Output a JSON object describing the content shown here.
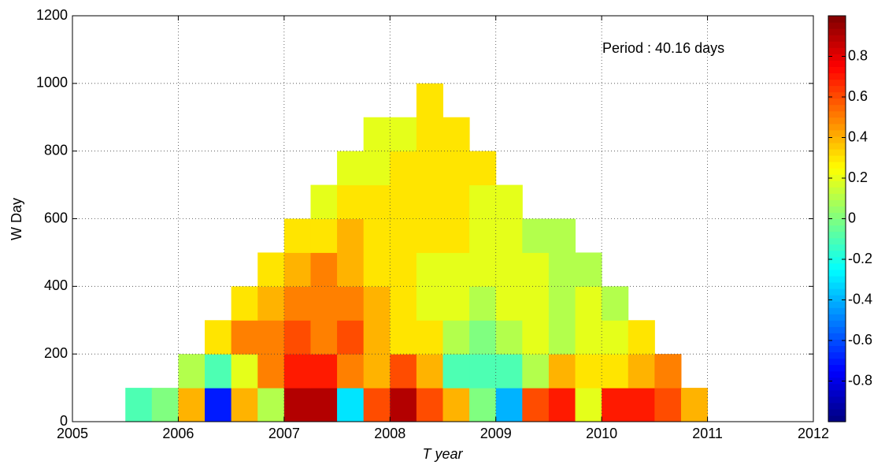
{
  "chart_data": {
    "type": "heatmap",
    "annotation": "Period : 40.16 days",
    "xlabel": "T year",
    "ylabel": "W Day",
    "xlim": [
      2005,
      2012
    ],
    "xticks": [
      2005,
      2006,
      2007,
      2008,
      2009,
      2010,
      2011,
      2012
    ],
    "ylim": [
      0,
      1200
    ],
    "yticks": [
      0,
      200,
      400,
      600,
      800,
      1000,
      1200
    ],
    "grid": true,
    "colormap": "jet",
    "clim": [
      -1,
      1
    ],
    "cticks": [
      -0.8,
      -0.6,
      -0.4,
      -0.2,
      0,
      0.2,
      0.4,
      0.6,
      0.8
    ],
    "x_edges": [
      2005.5,
      2005.75,
      2006,
      2006.25,
      2006.5,
      2006.75,
      2007,
      2007.25,
      2007.5,
      2007.75,
      2008,
      2008.25,
      2008.5,
      2008.75,
      2009,
      2009.25,
      2009.5,
      2009.75,
      2010,
      2010.25,
      2010.5,
      2010.75,
      2011
    ],
    "y_edges": [
      0,
      100,
      200,
      300,
      400,
      500,
      600,
      700,
      800,
      900,
      1000
    ],
    "z": [
      [
        -0.1,
        0.0,
        0.4,
        -0.7,
        0.4,
        0.1,
        0.9,
        0.9,
        -0.3,
        0.6,
        0.9,
        0.6,
        0.4,
        0.0,
        -0.4,
        0.6,
        0.7,
        0.2,
        0.7,
        0.7,
        0.6,
        0.4
      ],
      [
        null,
        null,
        0.1,
        -0.1,
        0.2,
        0.5,
        0.7,
        0.7,
        0.5,
        0.4,
        0.6,
        0.4,
        -0.1,
        -0.1,
        -0.1,
        0.1,
        0.4,
        0.3,
        0.3,
        0.4,
        0.5,
        null
      ],
      [
        null,
        null,
        null,
        0.3,
        0.5,
        0.5,
        0.6,
        0.5,
        0.6,
        0.4,
        0.3,
        0.3,
        0.1,
        0.0,
        0.1,
        0.2,
        0.1,
        0.2,
        0.2,
        0.3,
        null,
        null
      ],
      [
        null,
        null,
        null,
        null,
        0.3,
        0.4,
        0.5,
        0.5,
        0.5,
        0.4,
        0.3,
        0.2,
        0.2,
        0.1,
        0.2,
        0.2,
        0.1,
        0.2,
        0.1,
        null,
        null,
        null
      ],
      [
        null,
        null,
        null,
        null,
        null,
        0.3,
        0.4,
        0.5,
        0.4,
        0.3,
        0.3,
        0.2,
        0.2,
        0.2,
        0.2,
        0.2,
        0.1,
        0.1,
        null,
        null,
        null,
        null
      ],
      [
        null,
        null,
        null,
        null,
        null,
        null,
        0.3,
        0.3,
        0.4,
        0.3,
        0.3,
        0.3,
        0.3,
        0.2,
        0.2,
        0.1,
        0.1,
        null,
        null,
        null,
        null,
        null
      ],
      [
        null,
        null,
        null,
        null,
        null,
        null,
        null,
        0.2,
        0.3,
        0.3,
        0.3,
        0.3,
        0.3,
        0.2,
        0.2,
        null,
        null,
        null,
        null,
        null,
        null,
        null
      ],
      [
        null,
        null,
        null,
        null,
        null,
        null,
        null,
        null,
        0.2,
        0.2,
        0.3,
        0.3,
        0.3,
        0.3,
        null,
        null,
        null,
        null,
        null,
        null,
        null,
        null
      ],
      [
        null,
        null,
        null,
        null,
        null,
        null,
        null,
        null,
        null,
        0.2,
        0.2,
        0.3,
        0.3,
        null,
        null,
        null,
        null,
        null,
        null,
        null,
        null,
        null
      ],
      [
        null,
        null,
        null,
        null,
        null,
        null,
        null,
        null,
        null,
        null,
        null,
        0.3,
        null,
        null,
        null,
        null,
        null,
        null,
        null,
        null,
        null,
        null
      ]
    ]
  }
}
